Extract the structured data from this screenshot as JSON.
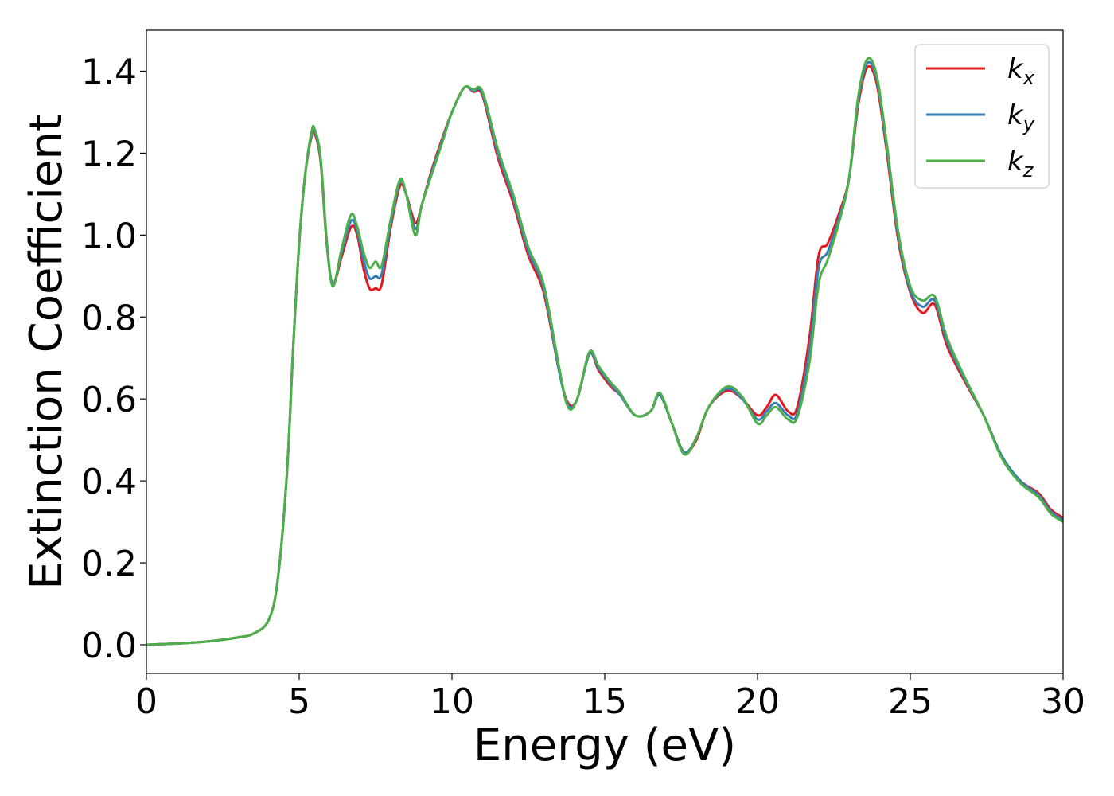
{
  "chart_data": {
    "type": "line",
    "title": "",
    "xlabel": "Energy (eV)",
    "ylabel": "Extinction Coefficient",
    "xlim": [
      0,
      30
    ],
    "ylim": [
      -0.07,
      1.5
    ],
    "xticks": [
      0,
      5,
      10,
      15,
      20,
      25,
      30
    ],
    "xtick_labels": [
      "0",
      "5",
      "10",
      "15",
      "20",
      "25",
      "30"
    ],
    "yticks": [
      0.0,
      0.2,
      0.4,
      0.6,
      0.8,
      1.0,
      1.2,
      1.4
    ],
    "ytick_labels": [
      "0.0",
      "0.2",
      "0.4",
      "0.6",
      "0.8",
      "1.0",
      "1.2",
      "1.4"
    ],
    "grid": false,
    "legend_position": "top-right",
    "series": [
      {
        "name": "k",
        "subscript": "x",
        "color": "#e41a1c",
        "x": [
          0,
          1,
          2,
          3,
          3.5,
          4,
          4.3,
          4.6,
          4.8,
          5.0,
          5.2,
          5.4,
          5.5,
          5.7,
          5.9,
          6.1,
          6.4,
          6.7,
          6.9,
          7.1,
          7.3,
          7.5,
          7.7,
          8.0,
          8.3,
          8.5,
          8.8,
          9.0,
          9.3,
          9.7,
          10.0,
          10.4,
          10.7,
          11.0,
          11.5,
          12.0,
          12.5,
          13.0,
          13.5,
          13.8,
          14.1,
          14.5,
          14.8,
          15.2,
          15.5,
          16.0,
          16.5,
          16.8,
          17.2,
          17.6,
          18.0,
          18.4,
          19.0,
          19.5,
          20.0,
          20.3,
          20.6,
          21.0,
          21.3,
          21.7,
          22.0,
          22.3,
          22.7,
          23.0,
          23.3,
          23.6,
          23.9,
          24.2,
          24.6,
          25.0,
          25.4,
          25.8,
          26.2,
          26.8,
          27.4,
          28.0,
          28.6,
          29.2,
          29.6,
          30.0
        ],
        "y": [
          0.0,
          0.003,
          0.008,
          0.018,
          0.027,
          0.06,
          0.16,
          0.42,
          0.72,
          0.98,
          1.15,
          1.24,
          1.25,
          1.18,
          0.98,
          0.88,
          0.95,
          1.02,
          1.0,
          0.92,
          0.87,
          0.87,
          0.88,
          1.02,
          1.12,
          1.1,
          1.03,
          1.07,
          1.15,
          1.24,
          1.3,
          1.36,
          1.35,
          1.34,
          1.19,
          1.08,
          0.95,
          0.86,
          0.67,
          0.59,
          0.6,
          0.71,
          0.67,
          0.63,
          0.61,
          0.56,
          0.57,
          0.61,
          0.54,
          0.47,
          0.5,
          0.58,
          0.62,
          0.6,
          0.56,
          0.58,
          0.61,
          0.57,
          0.58,
          0.75,
          0.95,
          0.98,
          1.06,
          1.14,
          1.32,
          1.41,
          1.37,
          1.22,
          0.99,
          0.86,
          0.81,
          0.83,
          0.73,
          0.64,
          0.56,
          0.46,
          0.4,
          0.37,
          0.33,
          0.31
        ]
      },
      {
        "name": "k",
        "subscript": "y",
        "color": "#377eb8",
        "x": [
          0,
          1,
          2,
          3,
          3.5,
          4,
          4.3,
          4.6,
          4.8,
          5.0,
          5.2,
          5.4,
          5.5,
          5.7,
          5.9,
          6.1,
          6.4,
          6.7,
          6.9,
          7.1,
          7.3,
          7.5,
          7.7,
          8.0,
          8.3,
          8.5,
          8.8,
          9.0,
          9.3,
          9.7,
          10.0,
          10.4,
          10.7,
          11.0,
          11.5,
          12.0,
          12.5,
          13.0,
          13.5,
          13.8,
          14.1,
          14.5,
          14.8,
          15.2,
          15.5,
          16.0,
          16.5,
          16.8,
          17.2,
          17.6,
          18.0,
          18.4,
          19.0,
          19.5,
          20.0,
          20.3,
          20.6,
          21.0,
          21.3,
          21.7,
          22.0,
          22.3,
          22.7,
          23.0,
          23.3,
          23.6,
          23.9,
          24.2,
          24.6,
          25.0,
          25.4,
          25.8,
          26.2,
          26.8,
          27.4,
          28.0,
          28.6,
          29.2,
          29.6,
          30.0
        ],
        "y": [
          0.0,
          0.003,
          0.008,
          0.018,
          0.027,
          0.06,
          0.16,
          0.42,
          0.72,
          0.98,
          1.15,
          1.245,
          1.255,
          1.185,
          0.985,
          0.88,
          0.96,
          1.035,
          1.01,
          0.94,
          0.895,
          0.9,
          0.905,
          1.03,
          1.13,
          1.1,
          1.015,
          1.07,
          1.145,
          1.235,
          1.3,
          1.36,
          1.352,
          1.345,
          1.2,
          1.09,
          0.96,
          0.87,
          0.67,
          0.585,
          0.6,
          0.71,
          0.675,
          0.635,
          0.61,
          0.56,
          0.57,
          0.61,
          0.54,
          0.47,
          0.505,
          0.58,
          0.625,
          0.6,
          0.55,
          0.57,
          0.59,
          0.56,
          0.565,
          0.72,
          0.92,
          0.96,
          1.05,
          1.14,
          1.33,
          1.42,
          1.38,
          1.23,
          1.0,
          0.865,
          0.825,
          0.84,
          0.74,
          0.645,
          0.56,
          0.46,
          0.4,
          0.365,
          0.325,
          0.305
        ]
      },
      {
        "name": "k",
        "subscript": "z",
        "color": "#4daf4a",
        "x": [
          0,
          1,
          2,
          3,
          3.5,
          4,
          4.3,
          4.6,
          4.8,
          5.0,
          5.2,
          5.4,
          5.5,
          5.7,
          5.9,
          6.1,
          6.4,
          6.7,
          6.9,
          7.1,
          7.3,
          7.5,
          7.7,
          8.0,
          8.3,
          8.5,
          8.8,
          9.0,
          9.3,
          9.7,
          10.0,
          10.4,
          10.7,
          11.0,
          11.5,
          12.0,
          12.5,
          13.0,
          13.5,
          13.8,
          14.1,
          14.5,
          14.8,
          15.2,
          15.5,
          16.0,
          16.5,
          16.8,
          17.2,
          17.6,
          18.0,
          18.4,
          19.0,
          19.5,
          20.0,
          20.3,
          20.6,
          21.0,
          21.3,
          21.7,
          22.0,
          22.3,
          22.7,
          23.0,
          23.3,
          23.6,
          23.9,
          24.2,
          24.6,
          25.0,
          25.4,
          25.8,
          26.2,
          26.8,
          27.4,
          28.0,
          28.6,
          29.2,
          29.6,
          30.0
        ],
        "y": [
          0.0,
          0.003,
          0.008,
          0.018,
          0.027,
          0.06,
          0.16,
          0.42,
          0.72,
          0.98,
          1.15,
          1.25,
          1.26,
          1.19,
          0.99,
          0.875,
          0.97,
          1.05,
          1.02,
          0.96,
          0.92,
          0.935,
          0.925,
          1.04,
          1.135,
          1.1,
          1.0,
          1.07,
          1.14,
          1.23,
          1.3,
          1.36,
          1.355,
          1.35,
          1.21,
          1.1,
          0.97,
          0.88,
          0.68,
          0.58,
          0.6,
          0.715,
          0.68,
          0.64,
          0.615,
          0.56,
          0.57,
          0.615,
          0.54,
          0.465,
          0.505,
          0.58,
          0.63,
          0.605,
          0.54,
          0.56,
          0.58,
          0.55,
          0.555,
          0.69,
          0.88,
          0.94,
          1.04,
          1.14,
          1.34,
          1.43,
          1.39,
          1.24,
          1.01,
          0.875,
          0.84,
          0.85,
          0.75,
          0.65,
          0.56,
          0.455,
          0.395,
          0.36,
          0.32,
          0.3
        ]
      }
    ]
  }
}
